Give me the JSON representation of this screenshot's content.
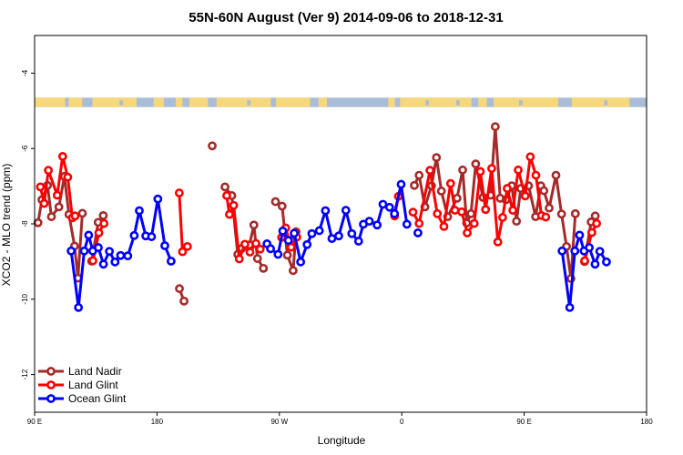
{
  "chart_data": {
    "type": "line",
    "title": "55N-60N August (Ver 9)   2014-09-06 to 2018-12-31",
    "xlabel": "Longitude",
    "ylabel": "XCO2 - MLO trend (ppm)",
    "xlim": [
      90,
      450
    ],
    "ylim": [
      -13,
      -3
    ],
    "x_ticks": [
      {
        "value": 90,
        "label": "90 E"
      },
      {
        "value": 162,
        "label": "180"
      },
      {
        "value": 234,
        "label": "90 W"
      },
      {
        "value": 306,
        "label": "0"
      },
      {
        "value": 378,
        "label": "90 E"
      },
      {
        "value": 450,
        "label": "180"
      }
    ],
    "y_ticks": [
      {
        "value": -4,
        "label": "-4"
      },
      {
        "value": -6,
        "label": "-6"
      },
      {
        "value": -8,
        "label": "-8"
      },
      {
        "value": -10,
        "label": "-10"
      },
      {
        "value": -12,
        "label": "-12"
      }
    ],
    "legend_position": "bottom-left",
    "land_band": {
      "y_range": [
        -4.9,
        -4.65
      ],
      "ocean_color": "#a9bcd8",
      "land_color": "#f6d77a"
    },
    "series": [
      {
        "name": "Land Nadir",
        "color": "#a52a2a",
        "segments": [
          [
            [
              92.0,
              -7.97
            ],
            [
              94.3,
              -7.36
            ],
            [
              97.6,
              -6.98
            ],
            [
              99.9,
              -7.81
            ],
            [
              104.3,
              -7.55
            ],
            [
              107.5,
              -6.74
            ],
            [
              110.2,
              -7.75
            ],
            [
              113.5,
              -8.59
            ],
            [
              115.5,
              -9.44
            ],
            [
              118.1,
              -7.72
            ]
          ],
          [
            [
              123.6,
              -8.99
            ],
            [
              127.4,
              -7.96
            ],
            [
              130.4,
              -7.78
            ]
          ],
          [
            [
              175.2,
              -9.72
            ],
            [
              177.9,
              -10.05
            ]
          ],
          [
            [
              194.5,
              -5.93
            ]
          ],
          [
            [
              202.0,
              -7.02
            ],
            [
              206.0,
              -7.25
            ],
            [
              209.5,
              -8.81
            ],
            [
              212.0,
              -8.65
            ],
            [
              216.4,
              -8.56
            ],
            [
              219.0,
              -8.03
            ],
            [
              221.1,
              -8.92
            ],
            [
              224.6,
              -9.18
            ]
          ],
          [
            [
              231.7,
              -7.41
            ],
            [
              235.6,
              -7.53
            ],
            [
              238.7,
              -8.83
            ],
            [
              242.1,
              -9.24
            ],
            [
              243.8,
              -8.21
            ]
          ],
          [
            [
              313.4,
              -6.98
            ],
            [
              316.2,
              -6.71
            ],
            [
              319.6,
              -7.55
            ],
            [
              323.5,
              -6.99
            ],
            [
              326.4,
              -6.24
            ],
            [
              329.3,
              -7.13
            ],
            [
              333.0,
              -7.81
            ],
            [
              338.5,
              -7.32
            ],
            [
              341.8,
              -6.57
            ],
            [
              344.2,
              -7.98
            ],
            [
              346.7,
              -7.73
            ],
            [
              349.5,
              -6.41
            ],
            [
              353.8,
              -7.3
            ],
            [
              358.2,
              -7.24
            ],
            [
              361.0,
              -5.42
            ],
            [
              363.9,
              -7.32
            ],
            [
              367.3,
              -7.36
            ],
            [
              370.7,
              -6.99
            ],
            [
              373.5,
              -7.93
            ],
            [
              376.0,
              -7.06
            ],
            [
              380.6,
              -6.99
            ],
            [
              384.7,
              -7.81
            ],
            [
              387.8,
              -6.99
            ],
            [
              389.6,
              -7.12
            ],
            [
              392.7,
              -7.58
            ],
            [
              396.7,
              -6.71
            ],
            [
              400.0,
              -7.74
            ],
            [
              402.9,
              -8.6
            ],
            [
              405.5,
              -9.45
            ],
            [
              408.1,
              -7.73
            ]
          ],
          [
            [
              413.5,
              -9.0
            ],
            [
              417.4,
              -7.95
            ],
            [
              419.8,
              -7.79
            ]
          ]
        ]
      },
      {
        "name": "Land Glint",
        "color": "#ff0000",
        "segments": [
          [
            [
              93.4,
              -7.02
            ],
            [
              95.6,
              -7.46
            ],
            [
              98.1,
              -6.58
            ],
            [
              103.3,
              -7.24
            ],
            [
              106.5,
              -6.21
            ],
            [
              109.5,
              -6.76
            ],
            [
              112.2,
              -7.84
            ],
            [
              113.8,
              -7.79
            ]
          ],
          [
            [
              124.3,
              -8.98
            ],
            [
              127.8,
              -8.24
            ],
            [
              130.8,
              -7.99
            ]
          ],
          [
            [
              175.1,
              -7.18
            ],
            [
              177.0,
              -8.74
            ],
            [
              179.9,
              -8.6
            ]
          ],
          [
            [
              203.0,
              -7.25
            ],
            [
              204.6,
              -7.75
            ],
            [
              207.1,
              -7.51
            ],
            [
              210.4,
              -8.93
            ],
            [
              213.7,
              -8.54
            ],
            [
              216.7,
              -8.75
            ],
            [
              220.2,
              -8.52
            ],
            [
              222.7,
              -8.67
            ]
          ],
          [
            [
              235.3,
              -8.36
            ],
            [
              237.7,
              -8.11
            ],
            [
              240.9,
              -8.62
            ],
            [
              244.2,
              -8.35
            ]
          ],
          [
            [
              301.8,
              -7.79
            ],
            [
              304.0,
              -7.27
            ]
          ],
          [
            [
              312.6,
              -7.69
            ],
            [
              316.2,
              -7.99
            ],
            [
              322.6,
              -6.58
            ],
            [
              326.9,
              -7.73
            ],
            [
              330.8,
              -8.07
            ],
            [
              334.7,
              -6.93
            ],
            [
              337.3,
              -7.64
            ],
            [
              341.2,
              -7.68
            ],
            [
              344.5,
              -8.24
            ],
            [
              348.6,
              -7.99
            ],
            [
              352.2,
              -6.61
            ],
            [
              355.3,
              -7.62
            ],
            [
              358.9,
              -6.53
            ],
            [
              362.5,
              -8.48
            ],
            [
              365.3,
              -7.83
            ],
            [
              368.0,
              -7.06
            ],
            [
              371.3,
              -7.64
            ],
            [
              374.5,
              -6.57
            ],
            [
              378.6,
              -7.26
            ],
            [
              381.6,
              -6.22
            ],
            [
              384.9,
              -6.71
            ],
            [
              388.2,
              -7.78
            ],
            [
              390.7,
              -7.82
            ]
          ],
          [
            [
              413.6,
              -8.98
            ],
            [
              417.8,
              -8.23
            ],
            [
              420.6,
              -7.99
            ]
          ]
        ]
      },
      {
        "name": "Ocean Glint",
        "color": "#0000ff",
        "segments": [
          [
            [
              111.5,
              -8.72
            ],
            [
              115.8,
              -10.22
            ],
            [
              119.2,
              -8.72
            ],
            [
              121.8,
              -8.3
            ],
            [
              124.2,
              -8.72
            ],
            [
              127.5,
              -8.63
            ],
            [
              130.5,
              -9.07
            ],
            [
              134.0,
              -8.73
            ],
            [
              137.3,
              -9.01
            ],
            [
              140.6,
              -8.84
            ],
            [
              144.8,
              -8.85
            ],
            [
              148.6,
              -8.31
            ],
            [
              151.6,
              -7.65
            ],
            [
              155.4,
              -8.32
            ],
            [
              158.8,
              -8.34
            ],
            [
              162.5,
              -7.34
            ],
            [
              166.6,
              -8.58
            ],
            [
              170.3,
              -8.99
            ]
          ],
          [
            [
              226.7,
              -8.53
            ],
            [
              228.8,
              -8.66
            ],
            [
              233.2,
              -8.81
            ],
            [
              236.0,
              -8.19
            ],
            [
              239.3,
              -8.44
            ],
            [
              242.7,
              -8.25
            ],
            [
              246.5,
              -9.01
            ],
            [
              250.3,
              -8.55
            ],
            [
              253.1,
              -8.26
            ],
            [
              257.5,
              -8.18
            ],
            [
              261.1,
              -7.65
            ],
            [
              264.9,
              -8.39
            ],
            [
              268.9,
              -8.32
            ],
            [
              273.1,
              -7.64
            ],
            [
              276.6,
              -8.26
            ],
            [
              280.6,
              -8.46
            ],
            [
              283.4,
              -8.01
            ],
            [
              286.9,
              -7.93
            ],
            [
              291.5,
              -8.03
            ],
            [
              294.9,
              -7.48
            ],
            [
              298.8,
              -7.56
            ],
            [
              301.7,
              -7.73
            ],
            [
              305.6,
              -6.95
            ],
            [
              309.0,
              -8.01
            ]
          ],
          [
            [
              315.5,
              -8.24
            ]
          ],
          [
            [
              400.3,
              -8.72
            ],
            [
              404.8,
              -10.22
            ],
            [
              407.8,
              -8.72
            ],
            [
              410.6,
              -8.3
            ],
            [
              413.2,
              -8.72
            ],
            [
              416.3,
              -8.63
            ],
            [
              419.7,
              -9.07
            ],
            [
              422.5,
              -8.73
            ],
            [
              426.4,
              -9.01
            ]
          ]
        ]
      }
    ]
  }
}
